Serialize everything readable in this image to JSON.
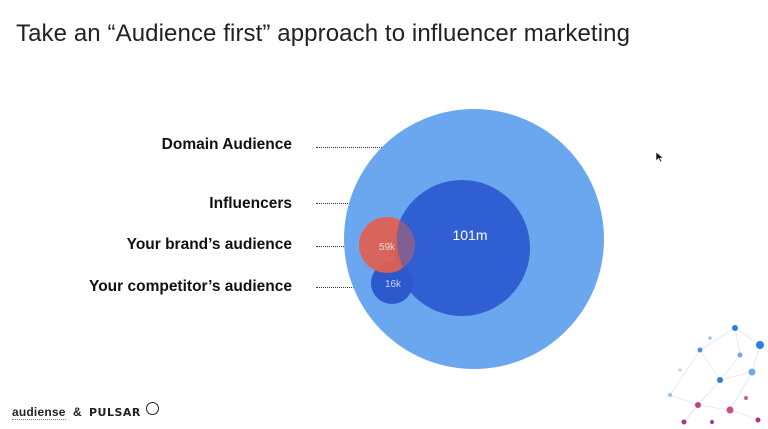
{
  "slide": {
    "title": "Take an “Audience first” approach to influencer marketing"
  },
  "labels": {
    "domain": "Domain Audience",
    "influencers": "Influencers",
    "brand": "Your brand’s audience",
    "competitor": "Your competitor’s audience"
  },
  "circles": {
    "influencers_value": "101m",
    "brand_value": "59k",
    "competitor_value": "16k"
  },
  "colors": {
    "domain": "#6aa7ee",
    "influencers": "#2f5fd3",
    "brand": "#e2604e",
    "competitor": "#2b59cc"
  },
  "footer": {
    "brand1": "audiense",
    "amp": "&",
    "brand2": "PULSAR"
  }
}
